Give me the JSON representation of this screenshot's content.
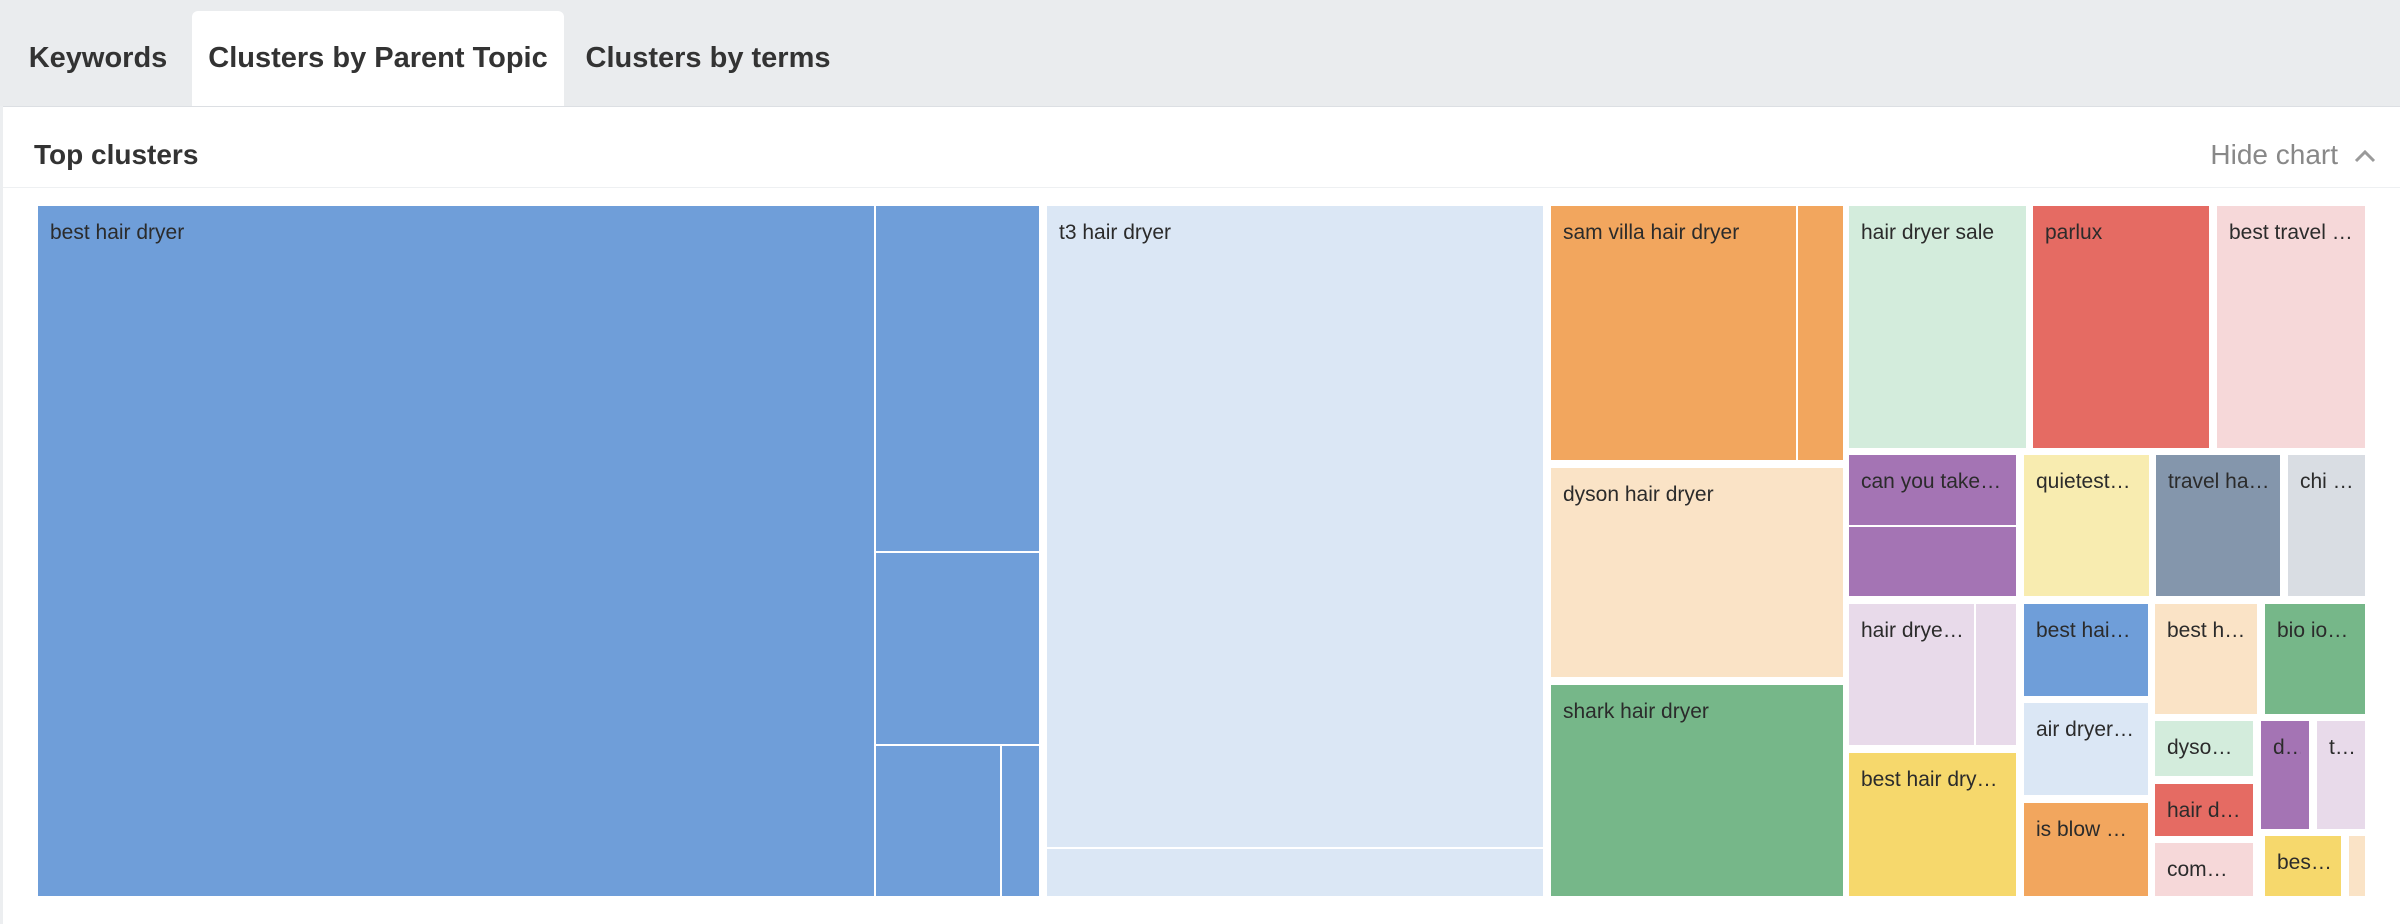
{
  "tabs": [
    {
      "label": "Keywords",
      "active": false
    },
    {
      "label": "Clusters by Parent Topic",
      "active": true
    },
    {
      "label": "Clusters by terms",
      "active": false
    }
  ],
  "panel": {
    "title": "Top clusters",
    "hide_chart_label": "Hide chart",
    "toggle_icon": "chevron-up-icon"
  },
  "chart_data": {
    "type": "treemap",
    "clusters": [
      {
        "label": "best hair dryer",
        "color": "#6f9ed9"
      },
      {
        "label": "",
        "color": "#6f9ed9"
      },
      {
        "label": "",
        "color": "#6f9ed9"
      },
      {
        "label": "",
        "color": "#6f9ed9"
      },
      {
        "label": "",
        "color": "#6f9ed9"
      },
      {
        "label": "t3 hair dryer",
        "color": "#dbe7f5"
      },
      {
        "label": "",
        "color": "#dbe7f5"
      },
      {
        "label": "sam villa hair dryer",
        "color": "#f2a65e"
      },
      {
        "label": "",
        "color": "#f2a65e"
      },
      {
        "label": "dyson hair dryer",
        "color": "#fae3c6"
      },
      {
        "label": "shark hair dryer",
        "color": "#76b789"
      },
      {
        "label": "hair dryer sale",
        "color": "#d3ecdc"
      },
      {
        "label": "parlux",
        "color": "#e56b63"
      },
      {
        "label": "best travel …",
        "color": "#f6d8d9"
      },
      {
        "label": "can you take…",
        "color": "#a474b4"
      },
      {
        "label": "",
        "color": "#a474b4"
      },
      {
        "label": "quietest…",
        "color": "#f8ecb0"
      },
      {
        "label": "travel ha…",
        "color": "#8496ac"
      },
      {
        "label": "chi …",
        "color": "#d9dde3"
      },
      {
        "label": "hair dryer uk",
        "color": "#e8daea"
      },
      {
        "label": "",
        "color": "#e8daea"
      },
      {
        "label": "best hai…",
        "color": "#6f9ed9"
      },
      {
        "label": "best h…",
        "color": "#fae3c6"
      },
      {
        "label": "bio io…",
        "color": "#76b789"
      },
      {
        "label": "air dryer…",
        "color": "#dbe7f5"
      },
      {
        "label": "dyso…",
        "color": "#d3ecdc"
      },
      {
        "label": "d…",
        "color": "#a474b4"
      },
      {
        "label": "t…",
        "color": "#e8daea"
      },
      {
        "label": "best hair dry…",
        "color": "#f6d86c"
      },
      {
        "label": "is blow …",
        "color": "#f2a65e"
      },
      {
        "label": "hair d…",
        "color": "#e56b63"
      },
      {
        "label": "com…",
        "color": "#f6d8d9"
      },
      {
        "label": "best…",
        "color": "#f6d86c"
      },
      {
        "label": "",
        "color": "#fae3c6"
      }
    ]
  }
}
